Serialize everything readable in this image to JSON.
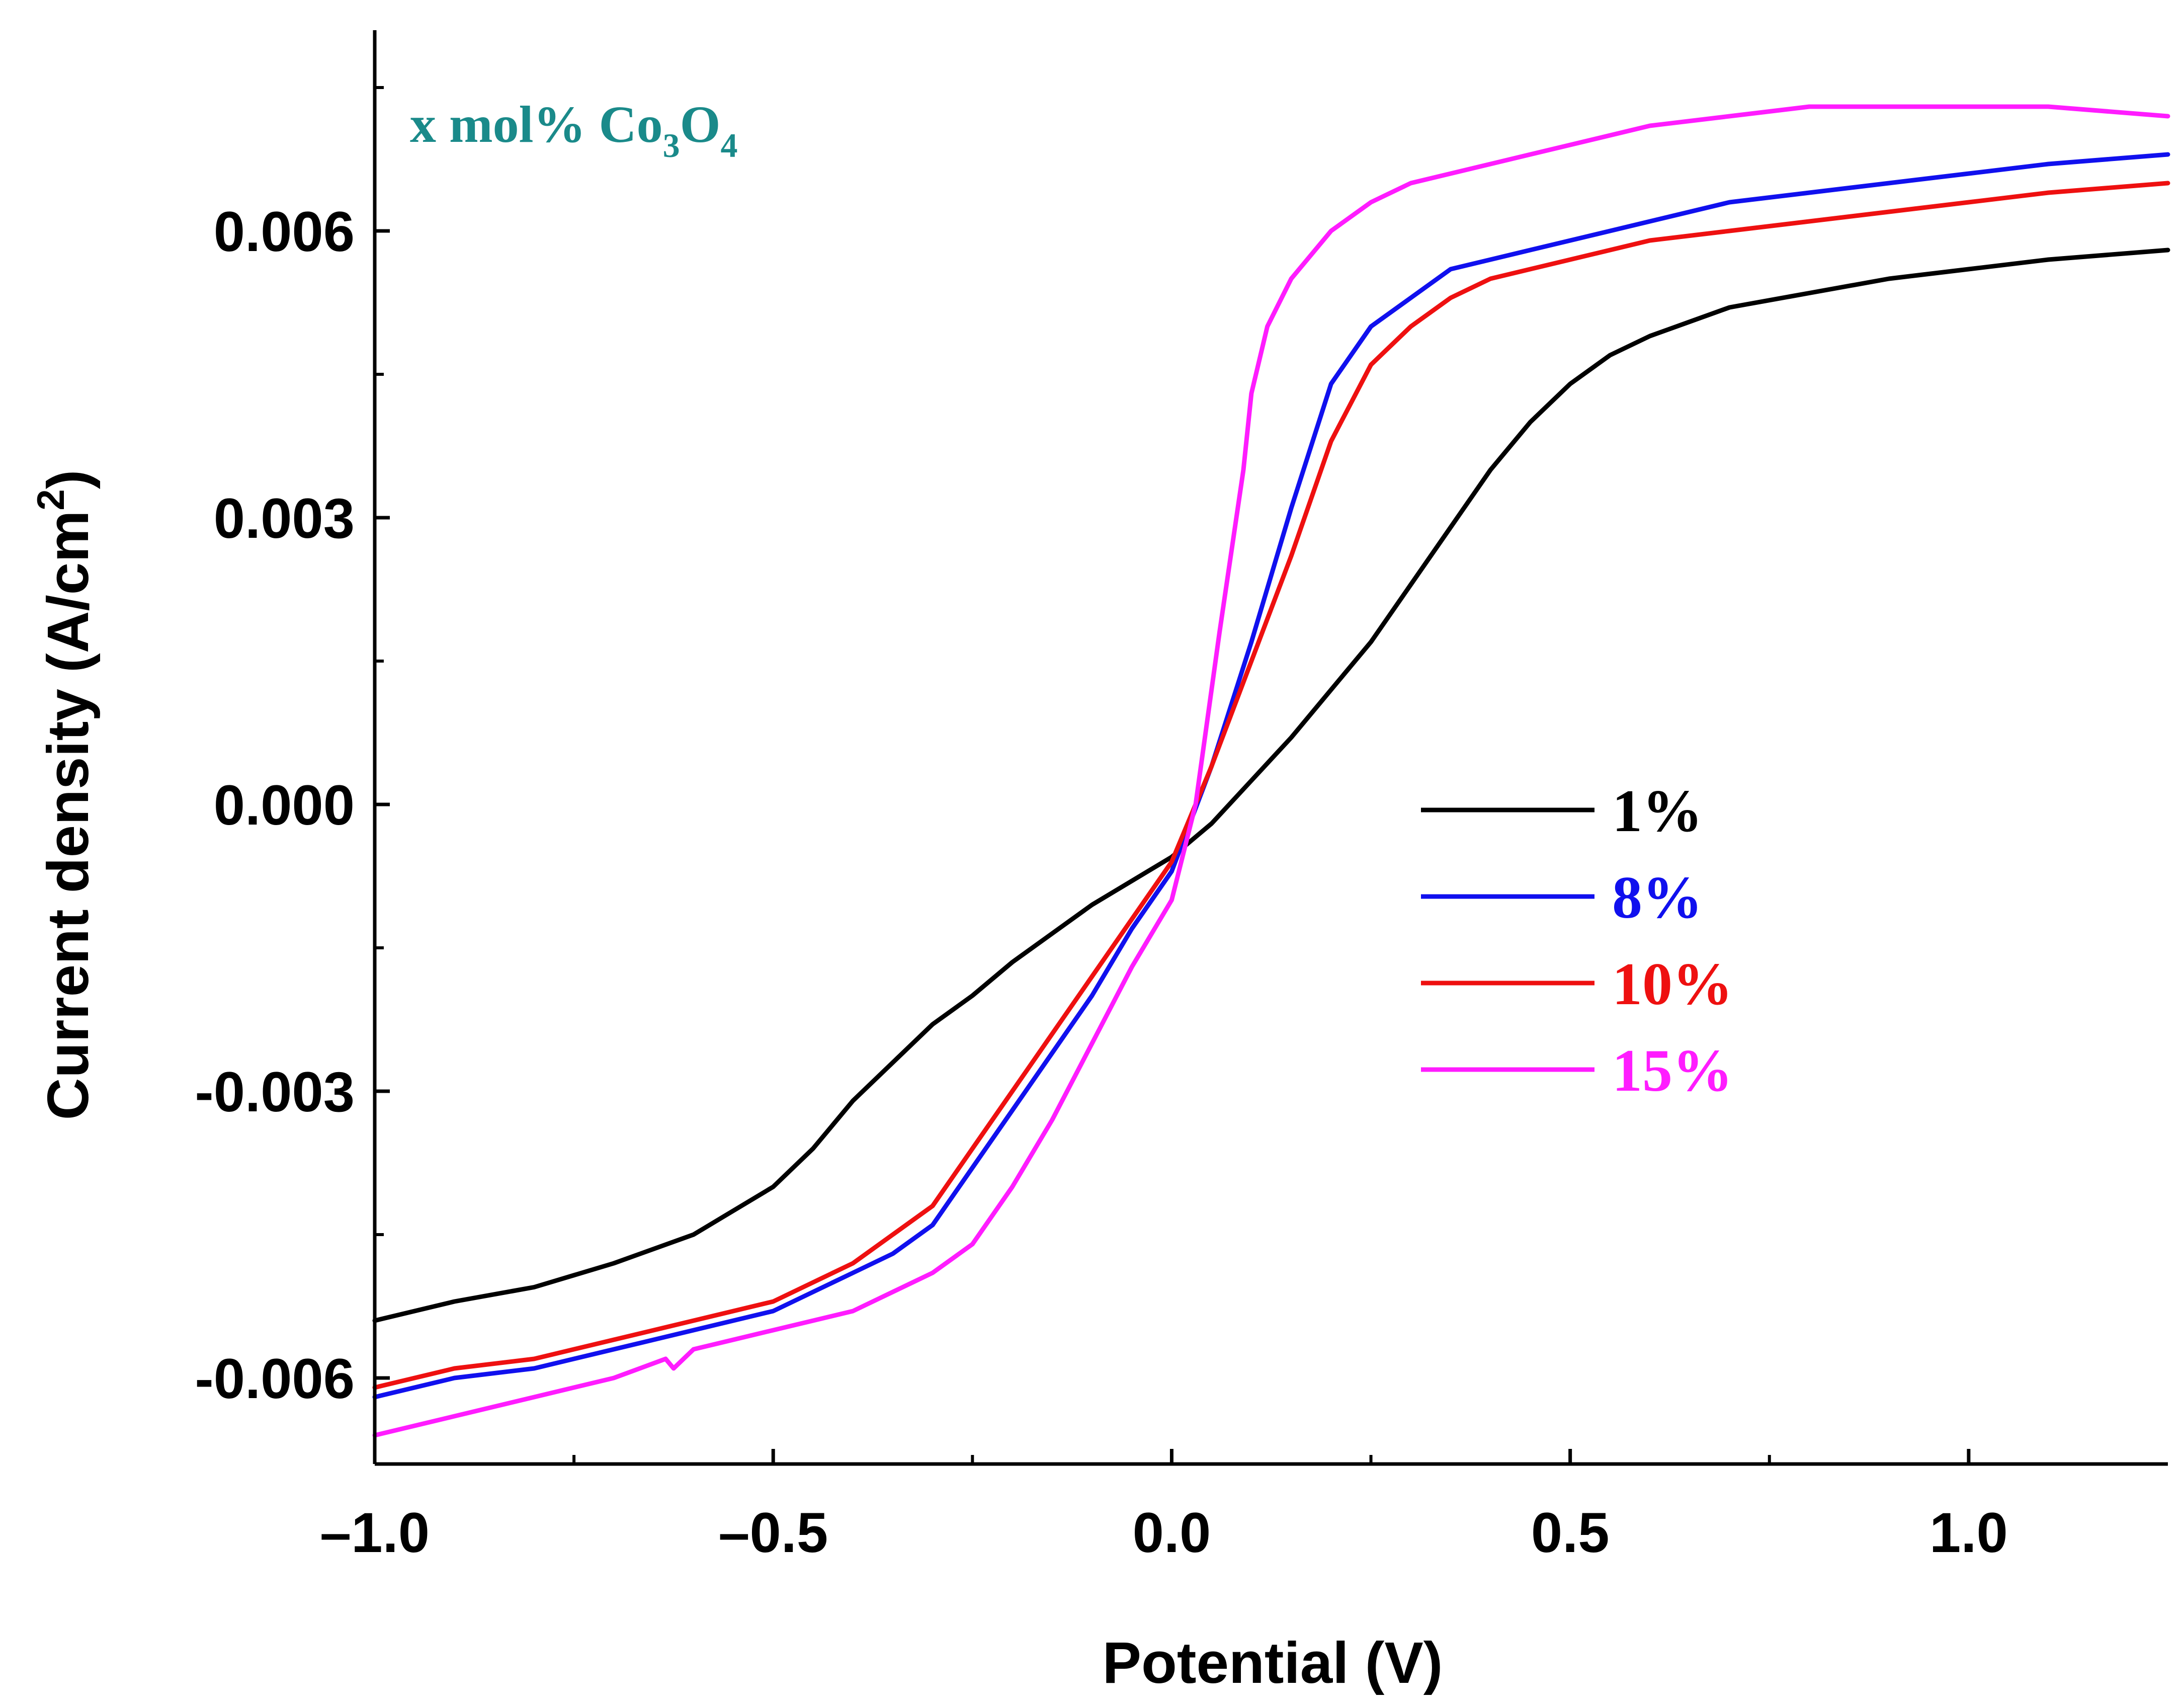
{
  "chart_data": {
    "type": "line",
    "title": "",
    "xlabel": "Potential (V)",
    "ylabel": "Current density (A/cm²)",
    "ylabel_parts": {
      "main": "Current density (A/cm",
      "sup": "2",
      "close": ")"
    },
    "xlim": [
      -1.0,
      1.25
    ],
    "ylim": [
      -0.0069,
      0.0081
    ],
    "x_ticks": [
      {
        "value": -1.0,
        "label": "–1.0"
      },
      {
        "value": -0.5,
        "label": "–0.5"
      },
      {
        "value": 0.0,
        "label": "0.0"
      },
      {
        "value": 0.5,
        "label": "0.5"
      },
      {
        "value": 1.0,
        "label": "1.0"
      }
    ],
    "x_minor_ticks": [
      -0.75,
      -0.25,
      0.25,
      0.75
    ],
    "y_ticks": [
      {
        "value": -0.006,
        "label": "-0.006"
      },
      {
        "value": -0.003,
        "label": "-0.003"
      },
      {
        "value": 0.0,
        "label": "0.000"
      },
      {
        "value": 0.003,
        "label": "0.003"
      },
      {
        "value": 0.006,
        "label": "0.006"
      }
    ],
    "y_minor_ticks": [
      -0.0045,
      -0.0015,
      0.0015,
      0.0045,
      0.0075
    ],
    "annotation": {
      "prefix": "x mol% Co",
      "sub1": "3",
      "mid": "O",
      "sub2": "4",
      "color": "#1a8a8a"
    },
    "legend_position": "center-right",
    "grid": false,
    "series": [
      {
        "name": "1%",
        "color": "#000000",
        "x": [
          -1.0,
          -0.9,
          -0.8,
          -0.7,
          -0.6,
          -0.5,
          -0.45,
          -0.4,
          -0.35,
          -0.3,
          -0.25,
          -0.2,
          -0.15,
          -0.1,
          -0.05,
          0.0,
          0.05,
          0.1,
          0.15,
          0.2,
          0.25,
          0.3,
          0.35,
          0.4,
          0.45,
          0.5,
          0.55,
          0.6,
          0.65,
          0.7,
          0.8,
          0.9,
          1.0,
          1.1,
          1.25
        ],
        "y": [
          -0.0054,
          -0.0052,
          -0.00505,
          -0.0048,
          -0.0045,
          -0.004,
          -0.0036,
          -0.0031,
          -0.0027,
          -0.0023,
          -0.002,
          -0.00165,
          -0.00135,
          -0.00105,
          -0.0008,
          -0.00055,
          -0.0002,
          0.00025,
          0.0007,
          0.0012,
          0.0017,
          0.0023,
          0.0029,
          0.0035,
          0.004,
          0.0044,
          0.0047,
          0.0049,
          0.00505,
          0.0052,
          0.00535,
          0.0055,
          0.0056,
          0.0057,
          0.0058
        ]
      },
      {
        "name": "8%",
        "color": "#1010ee",
        "x": [
          -1.0,
          -0.9,
          -0.8,
          -0.7,
          -0.6,
          -0.5,
          -0.45,
          -0.4,
          -0.35,
          -0.3,
          -0.25,
          -0.2,
          -0.15,
          -0.1,
          -0.05,
          0.0,
          0.05,
          0.1,
          0.15,
          0.2,
          0.25,
          0.3,
          0.35,
          0.4,
          0.5,
          0.6,
          0.7,
          0.8,
          0.9,
          1.0,
          1.1,
          1.25
        ],
        "y": [
          -0.0062,
          -0.006,
          -0.0059,
          -0.0057,
          -0.0055,
          -0.0053,
          -0.0051,
          -0.0049,
          -0.0047,
          -0.0044,
          -0.0038,
          -0.0032,
          -0.0026,
          -0.002,
          -0.0013,
          -0.0007,
          0.0004,
          0.0017,
          0.0031,
          0.0044,
          0.005,
          0.0053,
          0.0056,
          0.0057,
          0.0059,
          0.0061,
          0.0063,
          0.0064,
          0.0065,
          0.0066,
          0.0067,
          0.0068
        ]
      },
      {
        "name": "10%",
        "color": "#ee1010",
        "x": [
          -1.0,
          -0.9,
          -0.8,
          -0.7,
          -0.6,
          -0.5,
          -0.45,
          -0.4,
          -0.35,
          -0.3,
          -0.25,
          -0.2,
          -0.15,
          -0.1,
          -0.05,
          0.0,
          0.05,
          0.1,
          0.15,
          0.2,
          0.25,
          0.3,
          0.35,
          0.4,
          0.5,
          0.6,
          0.7,
          0.8,
          0.9,
          1.0,
          1.1,
          1.25
        ],
        "y": [
          -0.0061,
          -0.0059,
          -0.0058,
          -0.0056,
          -0.0054,
          -0.0052,
          -0.005,
          -0.0048,
          -0.0045,
          -0.0042,
          -0.0036,
          -0.003,
          -0.0024,
          -0.0018,
          -0.0012,
          -0.0006,
          0.0004,
          0.0015,
          0.0026,
          0.0038,
          0.0046,
          0.005,
          0.0053,
          0.0055,
          0.0057,
          0.0059,
          0.006,
          0.0061,
          0.0062,
          0.0063,
          0.0064,
          0.0065
        ]
      },
      {
        "name": "15%",
        "color": "#ff1cff",
        "x": [
          -1.0,
          -0.9,
          -0.8,
          -0.7,
          -0.635,
          -0.625,
          -0.6,
          -0.5,
          -0.4,
          -0.3,
          -0.25,
          -0.2,
          -0.15,
          -0.1,
          -0.05,
          0.0,
          0.03,
          0.06,
          0.09,
          0.1,
          0.12,
          0.15,
          0.2,
          0.25,
          0.3,
          0.4,
          0.5,
          0.6,
          0.7,
          0.8,
          0.9,
          1.0,
          1.1,
          1.25
        ],
        "y": [
          -0.0066,
          -0.0064,
          -0.0062,
          -0.006,
          -0.0058,
          -0.0059,
          -0.0057,
          -0.0055,
          -0.0053,
          -0.0049,
          -0.0046,
          -0.004,
          -0.0033,
          -0.0025,
          -0.0017,
          -0.001,
          0.0,
          0.0018,
          0.0035,
          0.0043,
          0.005,
          0.0055,
          0.006,
          0.0063,
          0.0065,
          0.0067,
          0.0069,
          0.0071,
          0.0072,
          0.0073,
          0.0073,
          0.0073,
          0.0073,
          0.0072
        ]
      }
    ]
  }
}
